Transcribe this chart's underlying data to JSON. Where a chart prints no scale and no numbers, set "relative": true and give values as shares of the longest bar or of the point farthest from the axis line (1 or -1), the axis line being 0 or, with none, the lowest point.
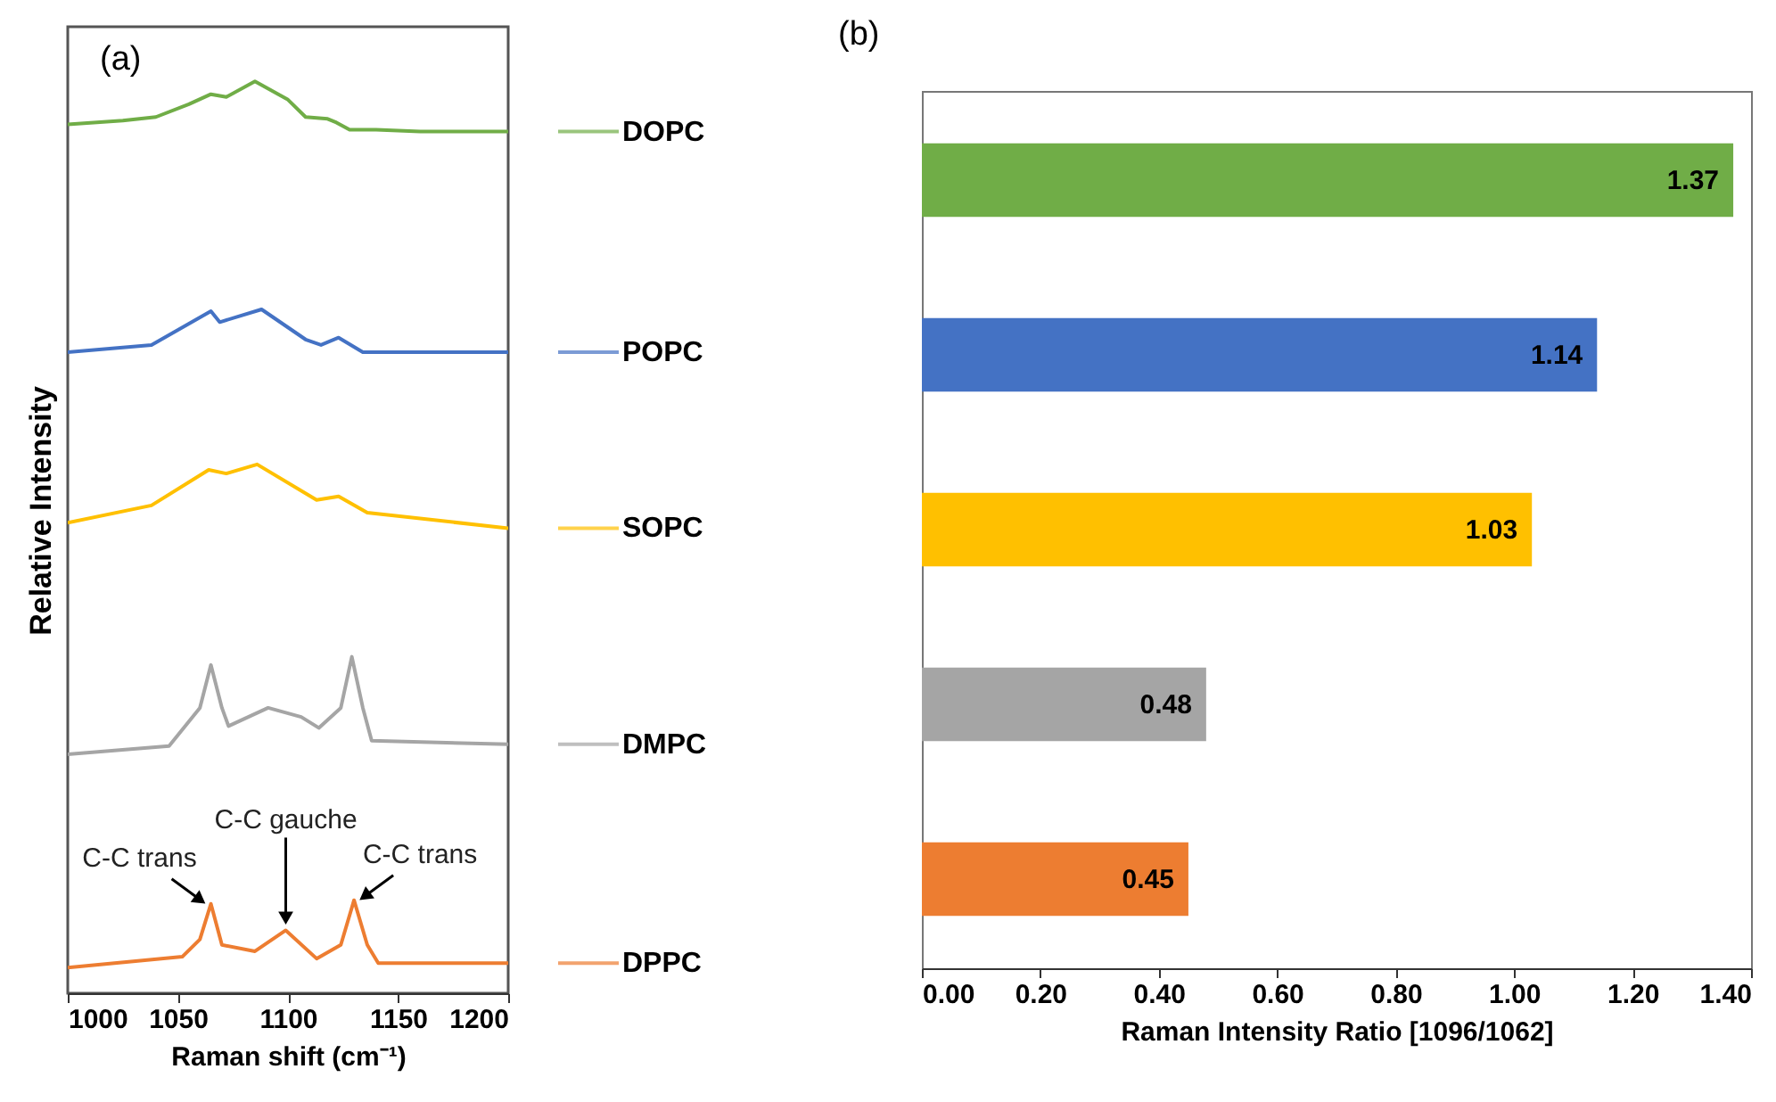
{
  "chart_data": [
    {
      "type": "line",
      "title": "(a)",
      "relative": true,
      "xlabel": "Raman shift (cm⁻¹)",
      "ylabel": "Relative Intensity",
      "xlim": [
        1000,
        1200
      ],
      "xticks": [
        1000,
        1050,
        1100,
        1150,
        1200
      ],
      "legend": "right",
      "series": [
        {
          "name": "DOPC",
          "color": "#70ad47",
          "x": [
            1000,
            1025,
            1040,
            1055,
            1065,
            1072,
            1085,
            1100,
            1108,
            1118,
            1122,
            1128,
            1140,
            1160,
            1200
          ],
          "values": [
            0.953,
            0.957,
            0.961,
            0.975,
            0.986,
            0.983,
            1.0,
            0.98,
            0.961,
            0.959,
            0.955,
            0.947,
            0.947,
            0.945,
            0.945
          ]
        },
        {
          "name": "POPC",
          "color": "#4472c4",
          "x": [
            1000,
            1038,
            1065,
            1069,
            1088,
            1108,
            1115,
            1123,
            1134,
            1200
          ],
          "values": [
            0.703,
            0.711,
            0.748,
            0.736,
            0.75,
            0.717,
            0.711,
            0.719,
            0.703,
            0.703
          ]
        },
        {
          "name": "SOPC",
          "color": "#ffc000",
          "x": [
            1000,
            1038,
            1064,
            1072,
            1086,
            1113,
            1123,
            1136,
            1200
          ],
          "values": [
            0.516,
            0.535,
            0.574,
            0.57,
            0.58,
            0.541,
            0.545,
            0.527,
            0.51
          ]
        },
        {
          "name": "DMPC",
          "color": "#a5a5a5",
          "x": [
            1000,
            1046,
            1060,
            1065,
            1070,
            1073,
            1091,
            1106,
            1114,
            1124,
            1129,
            1134,
            1138,
            1200
          ],
          "values": [
            0.262,
            0.271,
            0.313,
            0.36,
            0.313,
            0.293,
            0.313,
            0.303,
            0.291,
            0.313,
            0.369,
            0.313,
            0.277,
            0.273
          ]
        },
        {
          "name": "DPPC",
          "color": "#ed7d31",
          "x": [
            1000,
            1052,
            1060,
            1065,
            1070,
            1085,
            1099,
            1113,
            1124,
            1130,
            1136,
            1141,
            1200
          ],
          "values": [
            0.028,
            0.04,
            0.059,
            0.098,
            0.053,
            0.046,
            0.069,
            0.038,
            0.053,
            0.102,
            0.053,
            0.033,
            0.033
          ]
        }
      ],
      "annotations": [
        {
          "text": "C-C trans",
          "x": 1065,
          "y": 0.098
        },
        {
          "text": "C-C gauche",
          "x": 1099,
          "y": 0.069
        },
        {
          "text": "C-C trans",
          "x": 1130,
          "y": 0.102
        }
      ]
    },
    {
      "type": "bar",
      "title": "(b)",
      "orientation": "horizontal",
      "categories": [
        null,
        null,
        null,
        null,
        null
      ],
      "values": [
        1.37,
        1.14,
        1.03,
        0.48,
        0.45
      ],
      "colors": [
        "#70ad47",
        "#4472c4",
        "#ffc000",
        "#a5a5a5",
        "#ed7d31"
      ],
      "xlim": [
        0,
        1.4
      ],
      "xticks": [
        {
          "value": 0,
          "label": "0.00"
        },
        {
          "value": 0.2,
          "label": "0.20"
        },
        {
          "value": 0.4,
          "label": "0.40"
        },
        {
          "value": 0.6,
          "label": "0.60"
        },
        {
          "value": 0.8,
          "label": "0.80"
        },
        {
          "value": 1,
          "label": "1.00"
        },
        {
          "value": 1.2,
          "label": "1.20"
        },
        {
          "value": 1.4,
          "label": "1.40"
        }
      ],
      "xlabel": "Raman Intensity Ratio [1096/1062]",
      "data_labels": true
    }
  ]
}
